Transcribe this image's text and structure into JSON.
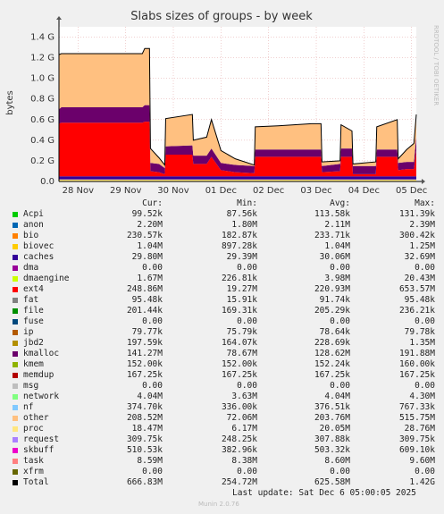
{
  "watermark": "RRDTOOL / TOBI OETIKER",
  "munin_version": "Munin 2.0.76",
  "last_update": "Last update: Sat Dec  6 05:00:05 2025",
  "columns": {
    "cur": "Cur:",
    "min": "Min:",
    "avg": "Avg:",
    "max": "Max:"
  },
  "legend": [
    {
      "name": "Acpi",
      "color": "#00cc00",
      "cur": "99.52k",
      "min": "87.56k",
      "avg": "113.58k",
      "max": "131.39k"
    },
    {
      "name": "anon",
      "color": "#0066b3",
      "cur": "2.20M",
      "min": "1.80M",
      "avg": "2.11M",
      "max": "2.39M"
    },
    {
      "name": "bio",
      "color": "#ff8000",
      "cur": "230.57k",
      "min": "182.87k",
      "avg": "233.71k",
      "max": "300.42k"
    },
    {
      "name": "biovec",
      "color": "#ffcc00",
      "cur": "1.04M",
      "min": "897.28k",
      "avg": "1.04M",
      "max": "1.25M"
    },
    {
      "name": "caches",
      "color": "#330099",
      "cur": "29.80M",
      "min": "29.39M",
      "avg": "30.06M",
      "max": "32.69M"
    },
    {
      "name": "dma",
      "color": "#990099",
      "cur": "0.00",
      "min": "0.00",
      "avg": "0.00",
      "max": "0.00"
    },
    {
      "name": "dmaengine",
      "color": "#ccff00",
      "cur": "1.67M",
      "min": "226.81k",
      "avg": "3.98M",
      "max": "20.43M"
    },
    {
      "name": "ext4",
      "color": "#ff0000",
      "cur": "248.86M",
      "min": "19.27M",
      "avg": "220.93M",
      "max": "653.57M"
    },
    {
      "name": "fat",
      "color": "#808080",
      "cur": "95.48k",
      "min": "15.91k",
      "avg": "91.74k",
      "max": "95.48k"
    },
    {
      "name": "file",
      "color": "#008f00",
      "cur": "201.44k",
      "min": "169.31k",
      "avg": "205.29k",
      "max": "236.21k"
    },
    {
      "name": "fuse",
      "color": "#00487d",
      "cur": "0.00",
      "min": "0.00",
      "avg": "0.00",
      "max": "0.00"
    },
    {
      "name": "ip",
      "color": "#b35a00",
      "cur": "79.77k",
      "min": "75.79k",
      "avg": "78.64k",
      "max": "79.78k"
    },
    {
      "name": "jbd2",
      "color": "#b38f00",
      "cur": "197.59k",
      "min": "164.07k",
      "avg": "228.69k",
      "max": "1.35M"
    },
    {
      "name": "kmalloc",
      "color": "#6b006b",
      "cur": "141.27M",
      "min": "78.67M",
      "avg": "128.62M",
      "max": "191.88M"
    },
    {
      "name": "kmem",
      "color": "#8fb300",
      "cur": "152.00k",
      "min": "152.00k",
      "avg": "152.24k",
      "max": "160.00k"
    },
    {
      "name": "memdup",
      "color": "#b30000",
      "cur": "167.25k",
      "min": "167.25k",
      "avg": "167.25k",
      "max": "167.25k"
    },
    {
      "name": "msg",
      "color": "#bebebe",
      "cur": "0.00",
      "min": "0.00",
      "avg": "0.00",
      "max": "0.00"
    },
    {
      "name": "network",
      "color": "#80ff80",
      "cur": "4.04M",
      "min": "3.63M",
      "avg": "4.04M",
      "max": "4.30M"
    },
    {
      "name": "nf",
      "color": "#80c9ff",
      "cur": "374.70k",
      "min": "336.00k",
      "avg": "376.51k",
      "max": "767.33k"
    },
    {
      "name": "other",
      "color": "#ffc080",
      "cur": "208.52M",
      "min": "72.06M",
      "avg": "203.76M",
      "max": "515.75M"
    },
    {
      "name": "proc",
      "color": "#ffe680",
      "cur": "18.47M",
      "min": "6.17M",
      "avg": "20.05M",
      "max": "28.76M"
    },
    {
      "name": "request",
      "color": "#aa80ff",
      "cur": "309.75k",
      "min": "248.25k",
      "avg": "307.88k",
      "max": "309.75k"
    },
    {
      "name": "skbuff",
      "color": "#ee00cc",
      "cur": "510.53k",
      "min": "382.96k",
      "avg": "503.32k",
      "max": "609.10k"
    },
    {
      "name": "task",
      "color": "#ff8080",
      "cur": "8.59M",
      "min": "8.38M",
      "avg": "8.60M",
      "max": "9.60M"
    },
    {
      "name": "xfrm",
      "color": "#666600",
      "cur": "0.00",
      "min": "0.00",
      "avg": "0.00",
      "max": "0.00"
    },
    {
      "name": "Total",
      "color": "#000000",
      "cur": "666.83M",
      "min": "254.72M",
      "avg": "625.58M",
      "max": "1.42G"
    }
  ],
  "chart_data": {
    "type": "area",
    "title": "Slabs sizes of groups - by week",
    "ylabel": "bytes",
    "ylim": [
      0,
      1.5
    ],
    "y_unit": "G",
    "yticks": [
      {
        "v": 0.0,
        "label": "0.0"
      },
      {
        "v": 0.2,
        "label": "0.2 G"
      },
      {
        "v": 0.4,
        "label": "0.4 G"
      },
      {
        "v": 0.6,
        "label": "0.6 G"
      },
      {
        "v": 0.8,
        "label": "0.8 G"
      },
      {
        "v": 1.0,
        "label": "1.0 G"
      },
      {
        "v": 1.2,
        "label": "1.2 G"
      },
      {
        "v": 1.4,
        "label": "1.4 G"
      }
    ],
    "xlim": [
      0,
      7
    ],
    "xticks": [
      {
        "v": 0.4,
        "label": "28 Nov"
      },
      {
        "v": 1.4,
        "label": "29 Nov"
      },
      {
        "v": 2.4,
        "label": "30 Nov"
      },
      {
        "v": 3.4,
        "label": "01 Dec"
      },
      {
        "v": 4.4,
        "label": "02 Dec"
      },
      {
        "v": 5.4,
        "label": "03 Dec"
      },
      {
        "v": 6.4,
        "label": "04 Dec"
      },
      {
        "v": 7.4,
        "label": "05 Dec"
      }
    ],
    "stack_colors": {
      "ext4": "#ff0000",
      "kmalloc": "#6b006b",
      "caches": "#330099",
      "proc": "#ffe680",
      "other": "#ffc080",
      "Total": "#000000"
    },
    "points": [
      {
        "x": 0.0,
        "proc": 0.02,
        "caches": 0.03,
        "ext4": 0.51,
        "kmalloc": 0.14,
        "other": 0.53
      },
      {
        "x": 0.05,
        "proc": 0.02,
        "caches": 0.03,
        "ext4": 0.52,
        "kmalloc": 0.15,
        "other": 0.52
      },
      {
        "x": 1.75,
        "proc": 0.02,
        "caches": 0.03,
        "ext4": 0.52,
        "kmalloc": 0.15,
        "other": 0.52
      },
      {
        "x": 1.8,
        "proc": 0.02,
        "caches": 0.03,
        "ext4": 0.53,
        "kmalloc": 0.16,
        "other": 0.55
      },
      {
        "x": 1.9,
        "proc": 0.02,
        "caches": 0.03,
        "ext4": 0.53,
        "kmalloc": 0.16,
        "other": 0.55
      },
      {
        "x": 1.92,
        "proc": 0.02,
        "caches": 0.03,
        "ext4": 0.05,
        "kmalloc": 0.08,
        "other": 0.14
      },
      {
        "x": 2.1,
        "proc": 0.02,
        "caches": 0.03,
        "ext4": 0.04,
        "kmalloc": 0.08,
        "other": 0.06
      },
      {
        "x": 2.22,
        "proc": 0.02,
        "caches": 0.03,
        "ext4": 0.02,
        "kmalloc": 0.06,
        "other": 0.03
      },
      {
        "x": 2.24,
        "proc": 0.02,
        "caches": 0.03,
        "ext4": 0.21,
        "kmalloc": 0.08,
        "other": 0.27
      },
      {
        "x": 2.8,
        "proc": 0.02,
        "caches": 0.03,
        "ext4": 0.21,
        "kmalloc": 0.09,
        "other": 0.3
      },
      {
        "x": 2.82,
        "proc": 0.02,
        "caches": 0.03,
        "ext4": 0.12,
        "kmalloc": 0.08,
        "other": 0.15
      },
      {
        "x": 3.1,
        "proc": 0.02,
        "caches": 0.03,
        "ext4": 0.12,
        "kmalloc": 0.08,
        "other": 0.18
      },
      {
        "x": 3.2,
        "proc": 0.02,
        "caches": 0.03,
        "ext4": 0.19,
        "kmalloc": 0.08,
        "other": 0.28
      },
      {
        "x": 3.4,
        "proc": 0.02,
        "caches": 0.03,
        "ext4": 0.06,
        "kmalloc": 0.07,
        "other": 0.12
      },
      {
        "x": 3.7,
        "proc": 0.02,
        "caches": 0.03,
        "ext4": 0.04,
        "kmalloc": 0.07,
        "other": 0.06
      },
      {
        "x": 4.1,
        "proc": 0.02,
        "caches": 0.03,
        "ext4": 0.03,
        "kmalloc": 0.07,
        "other": 0.01
      },
      {
        "x": 4.12,
        "proc": 0.02,
        "caches": 0.03,
        "ext4": 0.19,
        "kmalloc": 0.07,
        "other": 0.22
      },
      {
        "x": 4.6,
        "proc": 0.02,
        "caches": 0.03,
        "ext4": 0.19,
        "kmalloc": 0.07,
        "other": 0.23
      },
      {
        "x": 5.3,
        "proc": 0.02,
        "caches": 0.03,
        "ext4": 0.19,
        "kmalloc": 0.07,
        "other": 0.25
      },
      {
        "x": 5.5,
        "proc": 0.02,
        "caches": 0.03,
        "ext4": 0.19,
        "kmalloc": 0.07,
        "other": 0.25
      },
      {
        "x": 5.52,
        "proc": 0.02,
        "caches": 0.03,
        "ext4": 0.04,
        "kmalloc": 0.06,
        "other": 0.04
      },
      {
        "x": 5.9,
        "proc": 0.02,
        "caches": 0.03,
        "ext4": 0.05,
        "kmalloc": 0.07,
        "other": 0.03
      },
      {
        "x": 5.92,
        "proc": 0.02,
        "caches": 0.03,
        "ext4": 0.19,
        "kmalloc": 0.08,
        "other": 0.23
      },
      {
        "x": 6.15,
        "proc": 0.02,
        "caches": 0.03,
        "ext4": 0.19,
        "kmalloc": 0.08,
        "other": 0.17
      },
      {
        "x": 6.17,
        "proc": 0.02,
        "caches": 0.03,
        "ext4": 0.02,
        "kmalloc": 0.08,
        "other": 0.02
      },
      {
        "x": 6.65,
        "proc": 0.02,
        "caches": 0.03,
        "ext4": 0.02,
        "kmalloc": 0.08,
        "other": 0.04
      },
      {
        "x": 6.67,
        "proc": 0.02,
        "caches": 0.03,
        "ext4": 0.19,
        "kmalloc": 0.07,
        "other": 0.22
      },
      {
        "x": 7.1,
        "proc": 0.02,
        "caches": 0.03,
        "ext4": 0.19,
        "kmalloc": 0.07,
        "other": 0.29
      },
      {
        "x": 7.12,
        "proc": 0.02,
        "caches": 0.03,
        "ext4": 0.06,
        "kmalloc": 0.07,
        "other": 0.04
      },
      {
        "x": 7.3,
        "proc": 0.02,
        "caches": 0.03,
        "ext4": 0.07,
        "kmalloc": 0.07,
        "other": 0.12
      },
      {
        "x": 7.45,
        "proc": 0.02,
        "caches": 0.03,
        "ext4": 0.07,
        "kmalloc": 0.07,
        "other": 0.18
      },
      {
        "x": 7.5,
        "proc": 0.02,
        "caches": 0.03,
        "ext4": 0.25,
        "kmalloc": 0.14,
        "other": 0.21
      }
    ]
  }
}
